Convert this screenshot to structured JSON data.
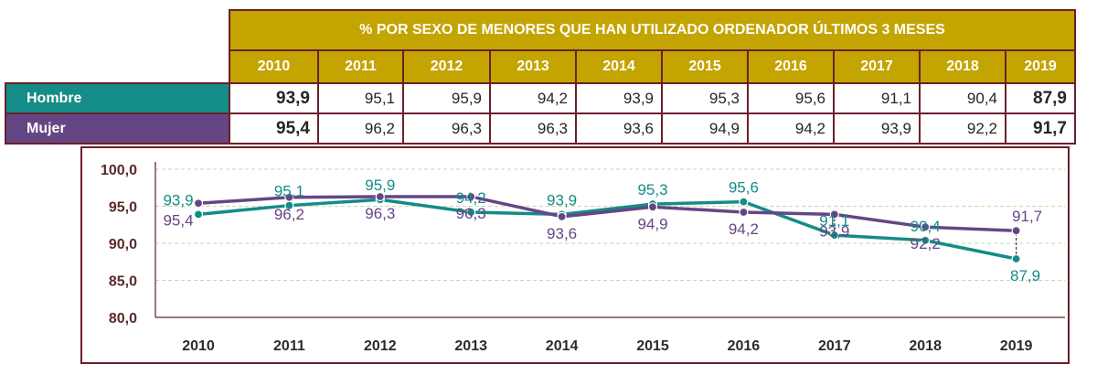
{
  "table": {
    "title": "% POR SEXO DE MENORES QUE HAN UTILIZADO ORDENADOR ÚLTIMOS 3 MESES",
    "years": [
      "2010",
      "2011",
      "2012",
      "2013",
      "2014",
      "2015",
      "2016",
      "2017",
      "2018",
      "2019"
    ],
    "rows": [
      {
        "label": "Hombre",
        "values": [
          "93,9",
          "95,1",
          "95,9",
          "94,2",
          "93,9",
          "95,3",
          "95,6",
          "91,1",
          "90,4",
          "87,9"
        ]
      },
      {
        "label": "Mujer",
        "values": [
          "95,4",
          "96,2",
          "96,3",
          "96,3",
          "93,6",
          "94,9",
          "94,2",
          "93,9",
          "92,2",
          "91,7"
        ]
      }
    ]
  },
  "chart_data": {
    "type": "line",
    "categories": [
      "2010",
      "2011",
      "2012",
      "2013",
      "2014",
      "2015",
      "2016",
      "2017",
      "2018",
      "2019"
    ],
    "series": [
      {
        "name": "Hombre",
        "color": "#148c88",
        "values": [
          93.9,
          95.1,
          95.9,
          94.2,
          93.9,
          95.3,
          95.6,
          91.1,
          90.4,
          87.9
        ],
        "labels": [
          "93,9",
          "95,1",
          "95,9",
          "94,2",
          "93,9",
          "95,3",
          "95,6",
          "91,1",
          "90,4",
          "87,9"
        ]
      },
      {
        "name": "Mujer",
        "color": "#654684",
        "values": [
          95.4,
          96.2,
          96.3,
          96.3,
          93.6,
          94.9,
          94.2,
          93.9,
          92.2,
          91.7
        ],
        "labels": [
          "95,4",
          "96,2",
          "96,3",
          "96,3",
          "93,6",
          "94,9",
          "94,2",
          "93,9",
          "92,2",
          "91,7"
        ]
      }
    ],
    "yticks": [
      "80,0",
      "85,0",
      "90,0",
      "95,0",
      "100,0"
    ],
    "ylim": [
      80,
      100
    ],
    "grid": true
  }
}
